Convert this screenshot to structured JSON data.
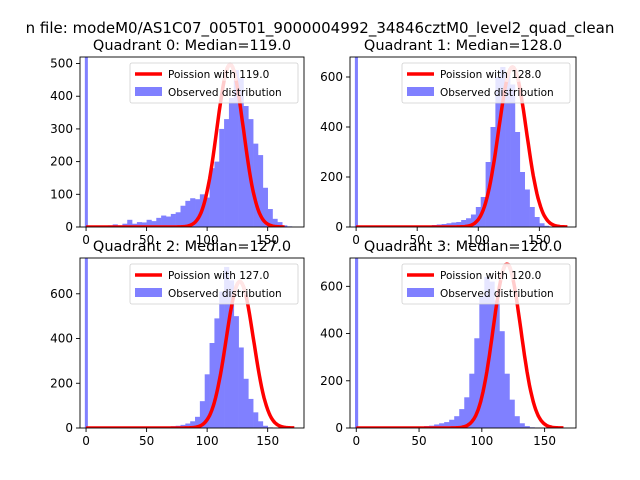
{
  "suptitle": "n file: modeM0/AS1C07_005T01_9000004992_34846cztM0_level2_quad_clean",
  "colors": {
    "poisson": "#ff0000",
    "poisson_alpha": "#ff8080",
    "hist": "#8080ff"
  },
  "chart_data": [
    {
      "type": "histogram+line",
      "title": "Quadrant 0: Median=119.0",
      "xlim": [
        -5,
        180
      ],
      "ylim": [
        0,
        520
      ],
      "xticks": [
        0,
        50,
        100,
        150
      ],
      "yticks": [
        0,
        100,
        200,
        300,
        400,
        500
      ],
      "legend": {
        "loc": "upper right",
        "line_label": "Poission with 119.0",
        "hist_label": "Observed distribution"
      },
      "spike": {
        "x": 0,
        "value": 520
      },
      "hist_x_start": 6,
      "bin_width": 4,
      "hist_values": [
        2,
        3,
        4,
        5,
        8,
        5,
        10,
        22,
        10,
        15,
        14,
        22,
        18,
        28,
        35,
        32,
        40,
        45,
        65,
        80,
        88,
        85,
        100,
        90,
        180,
        200,
        300,
        330,
        395,
        480,
        455,
        370,
        330,
        255,
        220,
        120,
        55,
        25,
        15,
        5,
        2
      ],
      "poisson_mu": 119,
      "poisson_peak": 497
    },
    {
      "type": "histogram+line",
      "title": "Quadrant 1: Median=128.0",
      "xlim": [
        -5,
        180
      ],
      "ylim": [
        0,
        680
      ],
      "xticks": [
        0,
        50,
        100,
        150
      ],
      "yticks": [
        0,
        200,
        400,
        600
      ],
      "legend": {
        "loc": "upper right",
        "line_label": "Poission with 128.0",
        "hist_label": "Observed distribution"
      },
      "spike": {
        "x": 0,
        "value": 680
      },
      "hist_x_start": 6,
      "bin_width": 4,
      "hist_values": [
        1,
        1,
        1,
        1,
        2,
        2,
        1,
        2,
        2,
        3,
        2,
        3,
        4,
        5,
        8,
        10,
        12,
        15,
        18,
        20,
        28,
        35,
        50,
        80,
        120,
        260,
        400,
        600,
        640,
        610,
        570,
        380,
        220,
        150,
        80,
        40,
        15,
        5,
        2,
        1
      ],
      "poisson_mu": 128,
      "poisson_peak": 640
    },
    {
      "type": "histogram+line",
      "title": "Quadrant 2: Median=127.0",
      "xlim": [
        -5,
        180
      ],
      "ylim": [
        0,
        760
      ],
      "xticks": [
        0,
        50,
        100,
        150
      ],
      "yticks": [
        0,
        200,
        400,
        600
      ],
      "legend": {
        "loc": "upper right",
        "line_label": "Poission with 127.0",
        "hist_label": "Observed distribution"
      },
      "spike": {
        "x": 0,
        "value": 760
      },
      "hist_x_start": 6,
      "bin_width": 4,
      "hist_values": [
        1,
        1,
        1,
        1,
        1,
        2,
        1,
        2,
        2,
        2,
        2,
        3,
        3,
        4,
        5,
        6,
        8,
        10,
        14,
        20,
        30,
        50,
        120,
        240,
        380,
        490,
        610,
        720,
        660,
        500,
        360,
        220,
        130,
        70,
        30,
        10,
        3,
        1,
        1,
        1
      ],
      "poisson_mu": 127,
      "poisson_peak": 655
    },
    {
      "type": "histogram+line",
      "title": "Quadrant 3: Median=120.0",
      "xlim": [
        -5,
        175
      ],
      "ylim": [
        0,
        720
      ],
      "xticks": [
        0,
        50,
        100,
        150
      ],
      "yticks": [
        0,
        200,
        400,
        600
      ],
      "legend": {
        "loc": "upper right",
        "line_label": "Poission with 120.0",
        "hist_label": "Observed distribution"
      },
      "spike": {
        "x": 0,
        "value": 720
      },
      "hist_x_start": 6,
      "bin_width": 4,
      "hist_values": [
        1,
        1,
        1,
        1,
        2,
        2,
        2,
        3,
        3,
        4,
        5,
        6,
        8,
        10,
        15,
        20,
        25,
        35,
        50,
        80,
        130,
        230,
        380,
        560,
        640,
        620,
        540,
        410,
        230,
        120,
        50,
        20,
        8,
        3,
        2,
        1,
        1
      ],
      "poisson_mu": 120,
      "poisson_peak": 695
    }
  ]
}
